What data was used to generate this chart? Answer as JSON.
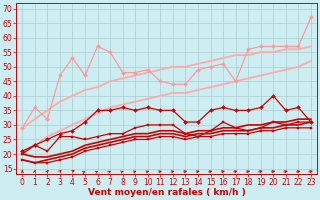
{
  "background_color": "#cceef2",
  "grid_color": "#aacccc",
  "xlabel": "Vent moyen/en rafales ( km/h )",
  "xlabel_color": "#cc0000",
  "xlabel_fontsize": 6.5,
  "tick_color": "#cc0000",
  "tick_fontsize": 5.5,
  "ylim": [
    13,
    72
  ],
  "yticks": [
    15,
    20,
    25,
    30,
    35,
    40,
    45,
    50,
    55,
    60,
    65,
    70
  ],
  "xlim": [
    -0.5,
    23.5
  ],
  "xticks": [
    0,
    1,
    2,
    3,
    4,
    5,
    6,
    7,
    8,
    9,
    10,
    11,
    12,
    13,
    14,
    15,
    16,
    17,
    18,
    19,
    20,
    21,
    22,
    23
  ],
  "series": [
    {
      "x": [
        0,
        1,
        2,
        3,
        4,
        5,
        6,
        7,
        8,
        9,
        10,
        11,
        12,
        13,
        14,
        15,
        16,
        17,
        18,
        19,
        20,
        21,
        22,
        23
      ],
      "y": [
        18,
        17,
        17,
        18,
        19,
        21,
        22,
        23,
        24,
        25,
        25,
        26,
        26,
        25,
        26,
        26,
        27,
        27,
        27,
        28,
        28,
        29,
        29,
        29
      ],
      "color": "#cc0000",
      "lw": 0.9,
      "marker": "s",
      "ms": 1.8
    },
    {
      "x": [
        0,
        1,
        2,
        3,
        4,
        5,
        6,
        7,
        8,
        9,
        10,
        11,
        12,
        13,
        14,
        15,
        16,
        17,
        18,
        19,
        20,
        21,
        22,
        23
      ],
      "y": [
        18,
        17,
        18,
        19,
        20,
        22,
        23,
        24,
        25,
        26,
        26,
        27,
        27,
        26,
        27,
        27,
        28,
        28,
        28,
        29,
        29,
        30,
        30,
        31
      ],
      "color": "#cc0000",
      "lw": 1.2,
      "marker": null,
      "ms": 0
    },
    {
      "x": [
        0,
        1,
        2,
        3,
        4,
        5,
        6,
        7,
        8,
        9,
        10,
        11,
        12,
        13,
        14,
        15,
        16,
        17,
        18,
        19,
        20,
        21,
        22,
        23
      ],
      "y": [
        20,
        19,
        19,
        20,
        21,
        23,
        24,
        25,
        26,
        27,
        27,
        28,
        28,
        27,
        28,
        28,
        29,
        29,
        30,
        30,
        31,
        31,
        32,
        32
      ],
      "color": "#cc0000",
      "lw": 1.2,
      "marker": null,
      "ms": 0
    },
    {
      "x": [
        0,
        1,
        2,
        3,
        4,
        5,
        6,
        7,
        8,
        9,
        10,
        11,
        12,
        13,
        14,
        15,
        16,
        17,
        18,
        19,
        20,
        21,
        22,
        23
      ],
      "y": [
        20,
        23,
        21,
        26,
        26,
        25,
        26,
        27,
        27,
        29,
        30,
        30,
        30,
        27,
        26,
        28,
        31,
        29,
        28,
        29,
        31,
        30,
        31,
        31
      ],
      "color": "#cc0000",
      "lw": 0.9,
      "marker": "s",
      "ms": 2.0
    },
    {
      "x": [
        0,
        1,
        2,
        3,
        4,
        5,
        6,
        7,
        8,
        9,
        10,
        11,
        12,
        13,
        14,
        15,
        16,
        17,
        18,
        19,
        20,
        21,
        22,
        23
      ],
      "y": [
        21,
        23,
        25,
        27,
        28,
        31,
        35,
        35,
        36,
        35,
        36,
        35,
        35,
        31,
        31,
        35,
        36,
        35,
        35,
        36,
        40,
        35,
        36,
        31
      ],
      "color": "#cc0000",
      "lw": 0.9,
      "marker": "D",
      "ms": 2.0
    },
    {
      "x": [
        0,
        1,
        2,
        3,
        4,
        5,
        6,
        7,
        8,
        9,
        10,
        11,
        12,
        13,
        14,
        15,
        16,
        17,
        18,
        19,
        20,
        21,
        22,
        23
      ],
      "y": [
        29,
        36,
        32,
        47,
        53,
        47,
        57,
        55,
        48,
        48,
        49,
        45,
        44,
        44,
        49,
        50,
        51,
        45,
        56,
        57,
        57,
        57,
        57,
        67
      ],
      "color": "#ff9999",
      "lw": 0.9,
      "marker": "D",
      "ms": 2.0
    },
    {
      "x": [
        0,
        1,
        2,
        3,
        4,
        5,
        6,
        7,
        8,
        9,
        10,
        11,
        12,
        13,
        14,
        15,
        16,
        17,
        18,
        19,
        20,
        21,
        22,
        23
      ],
      "y": [
        29,
        32,
        35,
        38,
        40,
        42,
        43,
        45,
        46,
        47,
        48,
        49,
        50,
        50,
        51,
        52,
        53,
        54,
        54,
        55,
        55,
        56,
        56,
        57
      ],
      "color": "#ffaaaa",
      "lw": 1.3,
      "marker": null,
      "ms": 0
    },
    {
      "x": [
        0,
        1,
        2,
        3,
        4,
        5,
        6,
        7,
        8,
        9,
        10,
        11,
        12,
        13,
        14,
        15,
        16,
        17,
        18,
        19,
        20,
        21,
        22,
        23
      ],
      "y": [
        21,
        23,
        26,
        28,
        30,
        32,
        34,
        36,
        37,
        38,
        39,
        40,
        41,
        41,
        42,
        43,
        44,
        45,
        46,
        47,
        48,
        49,
        50,
        52
      ],
      "color": "#ffaaaa",
      "lw": 1.3,
      "marker": null,
      "ms": 0
    }
  ],
  "arrow_angles": [
    0,
    5,
    10,
    15,
    20,
    25,
    30,
    32,
    34,
    36,
    38,
    40,
    40,
    42,
    42,
    43,
    43,
    44,
    44,
    45,
    45,
    45,
    45,
    45
  ]
}
